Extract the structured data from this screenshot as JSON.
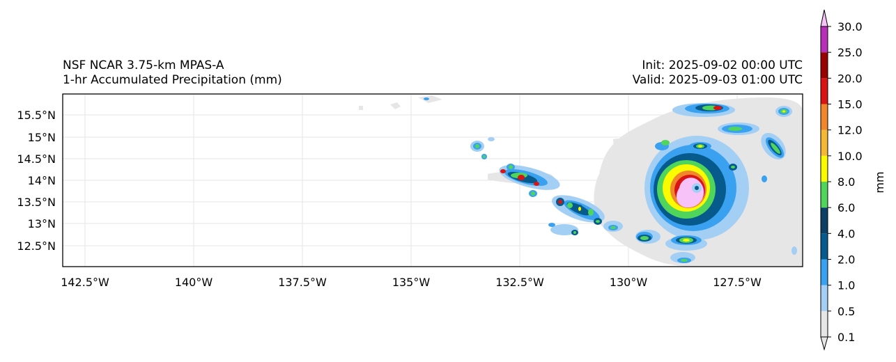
{
  "title_left": {
    "line1": "NSF NCAR 3.75-km MPAS-A",
    "line2": "1-hr Accumulated Precipitation (mm)"
  },
  "title_right": {
    "line1": "Init: 2025-09-02 00:00 UTC",
    "line2": "Valid: 2025-09-03 01:00 UTC"
  },
  "map": {
    "lon_ticks": [
      "142.5°W",
      "140°W",
      "137.5°W",
      "135°W",
      "132.5°W",
      "130°W",
      "127.5°W"
    ],
    "lat_ticks": [
      "15.5°N",
      "15°N",
      "14.5°N",
      "14°N",
      "13.5°N",
      "13°N",
      "12.5°N"
    ],
    "gridlines": true
  },
  "colorbar": {
    "label": "mm",
    "ticks": [
      "0.1",
      "0.5",
      "1.0",
      "2.0",
      "4.0",
      "6.0",
      "8.0",
      "10.0",
      "12.0",
      "15.0",
      "20.0",
      "25.0",
      "30.0"
    ],
    "colors": [
      "#e6e6e6",
      "#a3cff5",
      "#3aa1f0",
      "#065a8c",
      "#0b3f66",
      "#4fd45c",
      "#fafa00",
      "#f5b835",
      "#f0872a",
      "#d91414",
      "#990000",
      "#b830b8",
      "#f7c2f7"
    ]
  }
}
